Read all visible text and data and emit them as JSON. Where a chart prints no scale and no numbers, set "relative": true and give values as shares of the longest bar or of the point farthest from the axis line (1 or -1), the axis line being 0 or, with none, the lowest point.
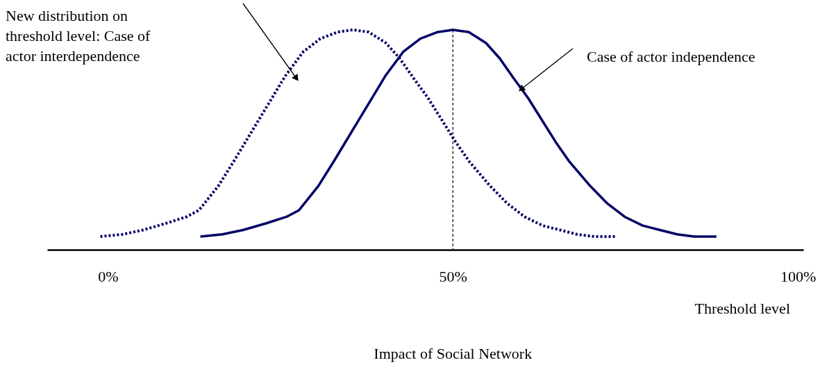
{
  "chart_data": {
    "type": "line",
    "relative": true,
    "xlabel": "Threshold level",
    "xlim": [
      -8.8,
      100.8
    ],
    "xticks": [
      {
        "value": 0,
        "label": "0%"
      },
      {
        "value": 50,
        "label": "50%"
      },
      {
        "value": 100,
        "label": "100%"
      }
    ],
    "grid": false,
    "series": [
      {
        "color": "#000066",
        "line_style": "dotted",
        "x": [
          -1.1,
          2.1,
          5.1,
          8.4,
          11.4,
          13.2,
          16.0,
          18.2,
          20.7,
          23.2,
          25.7,
          28.3,
          30.8,
          33.3,
          35.5,
          37.8,
          40.3,
          42.3,
          44.3,
          46.4,
          48.4,
          50.4,
          52.4,
          55.4,
          57.9,
          60.4,
          63.0,
          65.5,
          68.0,
          70.5,
          73.7
        ],
        "values": [
          0.06,
          0.07,
          0.09,
          0.12,
          0.15,
          0.18,
          0.29,
          0.4,
          0.53,
          0.66,
          0.79,
          0.9,
          0.96,
          0.99,
          1,
          0.99,
          0.94,
          0.87,
          0.78,
          0.69,
          0.59,
          0.49,
          0.4,
          0.29,
          0.21,
          0.15,
          0.11,
          0.09,
          0.07,
          0.06,
          0.06
        ]
      },
      {
        "color": "#000066",
        "line_style": "solid",
        "x": [
          13.4,
          16.6,
          19.6,
          22.9,
          25.9,
          27.7,
          30.5,
          32.7,
          35.2,
          37.7,
          40.2,
          42.8,
          45.3,
          47.8,
          50.0,
          52.3,
          54.8,
          56.8,
          58.8,
          60.9,
          62.9,
          64.9,
          66.9,
          69.9,
          72.4,
          74.9,
          77.5,
          80.0,
          82.5,
          85.0,
          88.2
        ],
        "values": [
          0.06,
          0.07,
          0.09,
          0.12,
          0.15,
          0.18,
          0.29,
          0.4,
          0.53,
          0.66,
          0.79,
          0.9,
          0.96,
          0.99,
          1,
          0.99,
          0.94,
          0.87,
          0.78,
          0.69,
          0.59,
          0.49,
          0.4,
          0.29,
          0.21,
          0.15,
          0.11,
          0.09,
          0.07,
          0.06,
          0.06
        ]
      }
    ],
    "ref_lines": [
      {
        "axis": "x",
        "value": 50,
        "line_style": "dashed",
        "color": "#000000"
      }
    ],
    "annotations": [
      "New distribution on threshold level: Case of actor interdependence",
      {
        "text": "Case of actor independence",
        "x": 59.9,
        "y": 0.73
      },
      "Impact of Social Network"
    ]
  }
}
